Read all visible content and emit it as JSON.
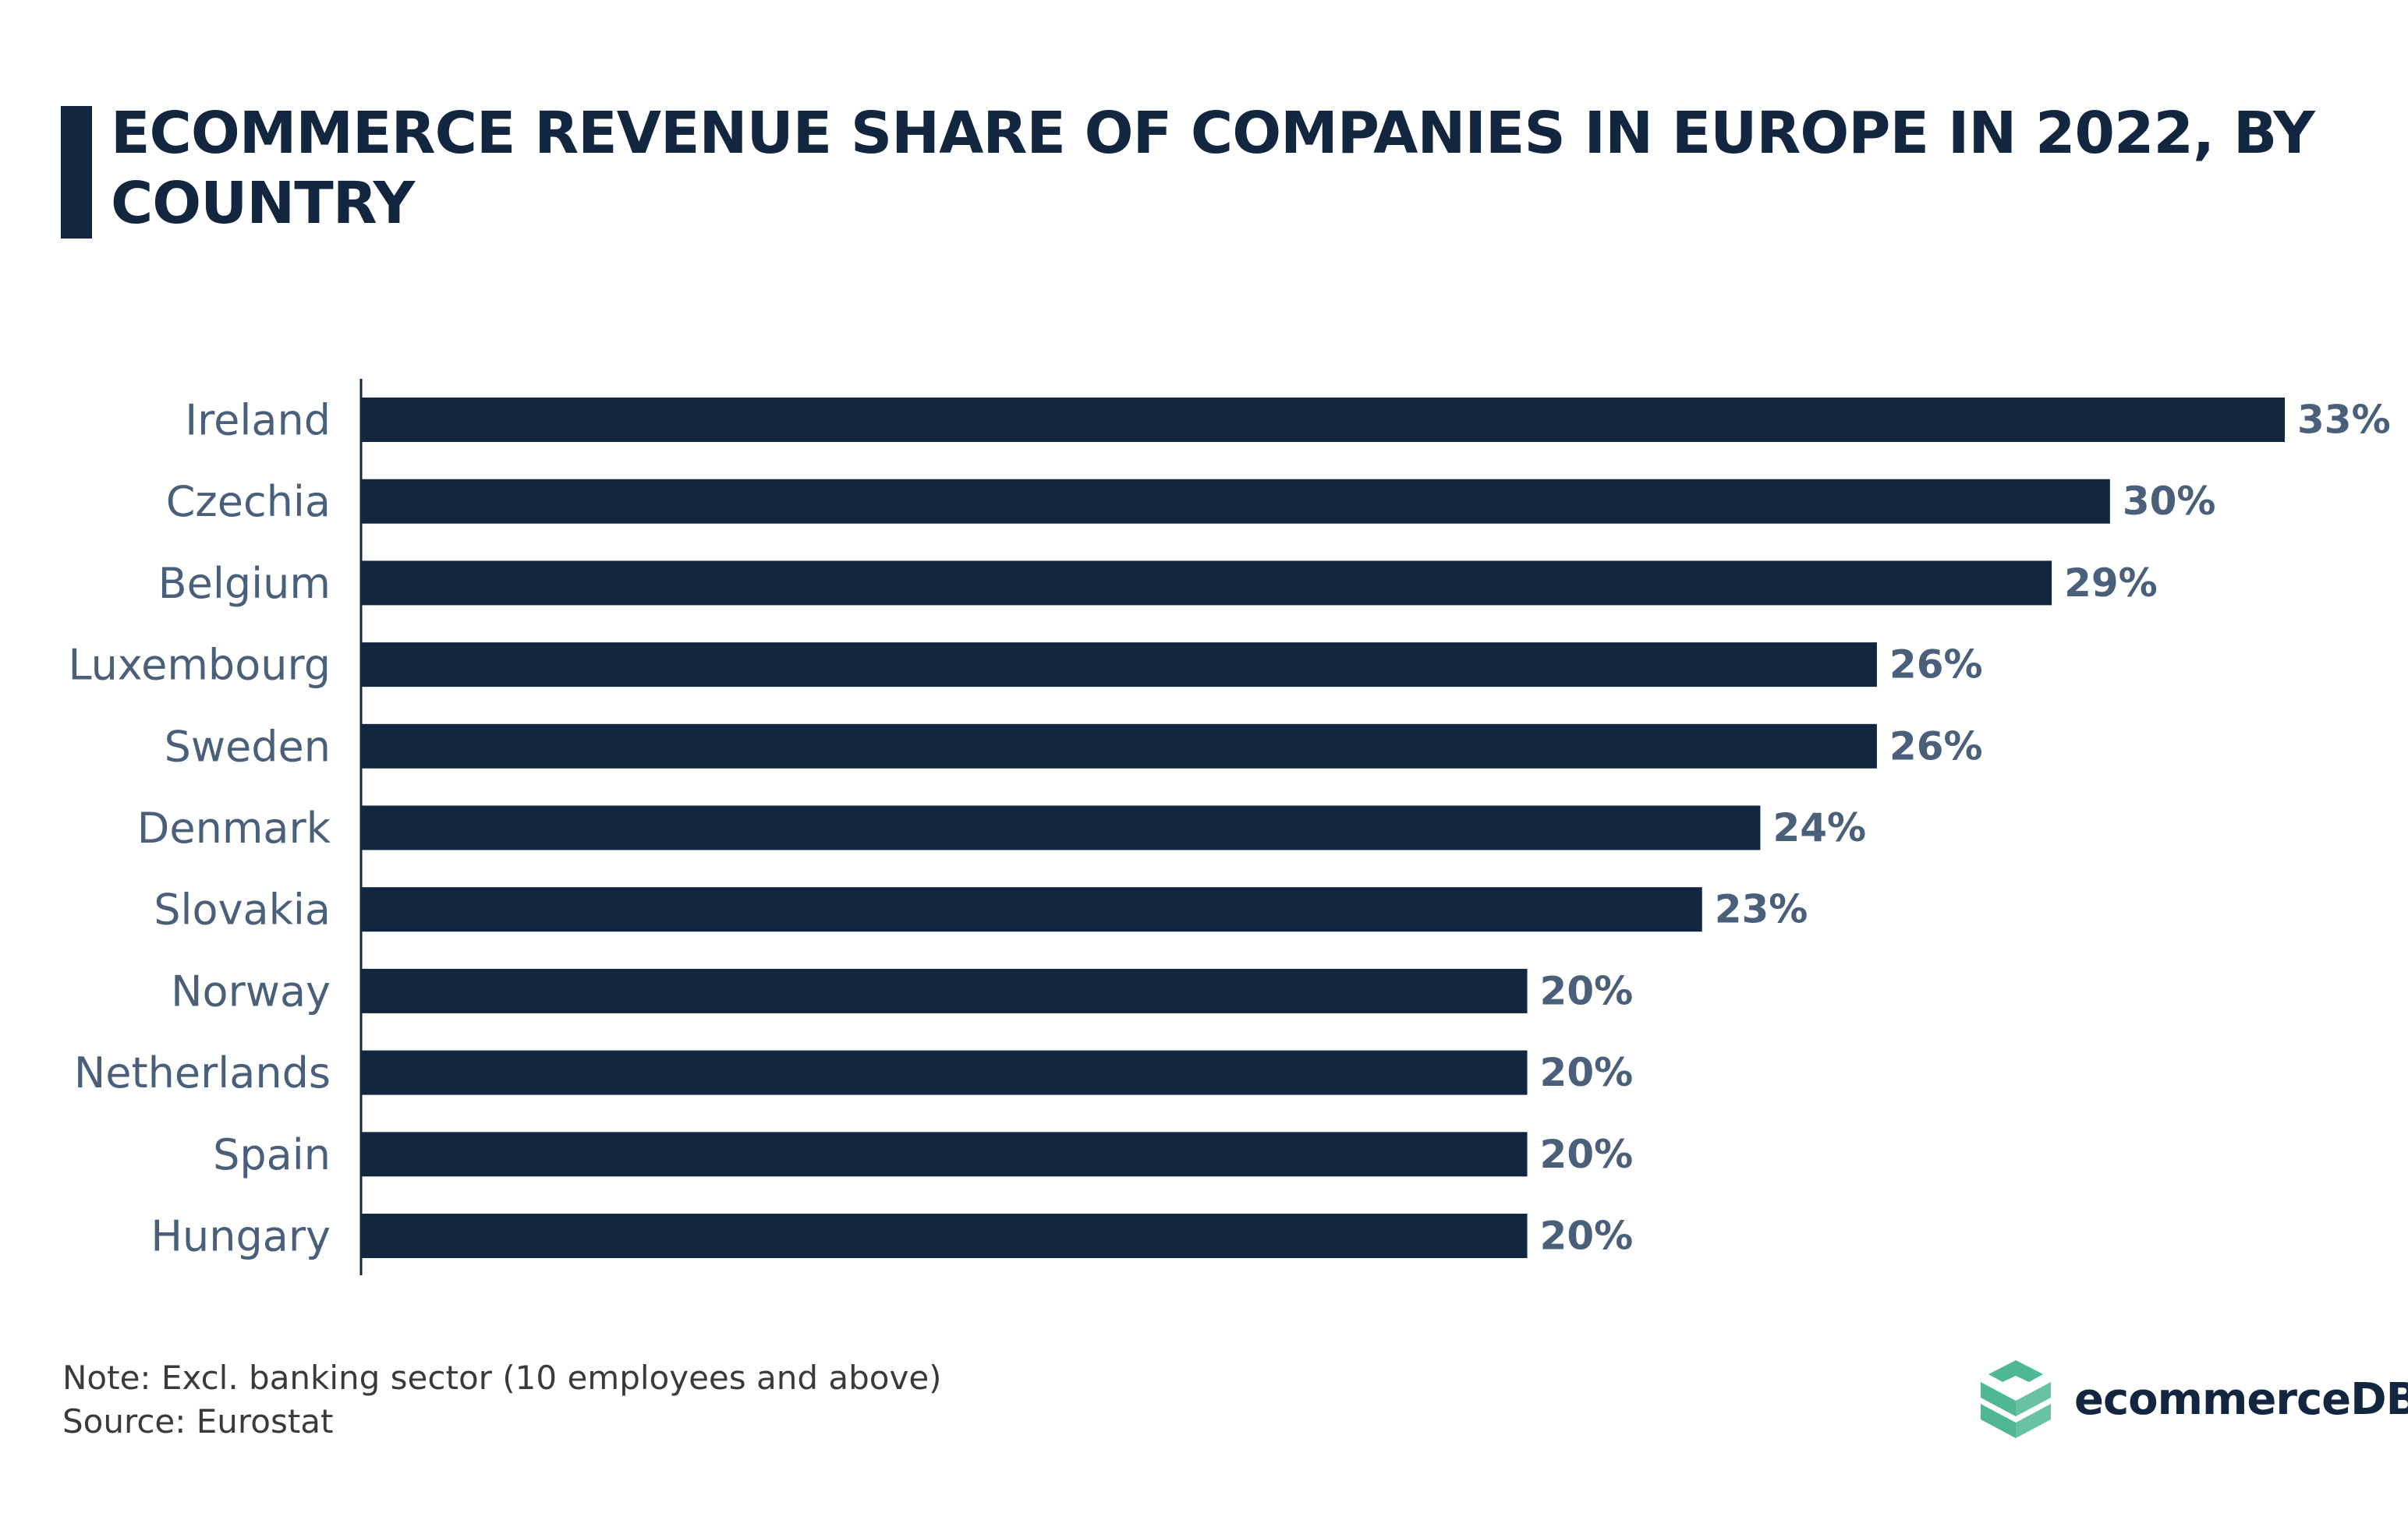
{
  "title": "ECOMMERCE REVENUE SHARE OF COMPANIES IN EUROPE IN 2022, BY COUNTRY",
  "chart_data": {
    "type": "bar",
    "orientation": "horizontal",
    "title": "ECOMMERCE REVENUE SHARE OF COMPANIES IN EUROPE IN 2022, BY COUNTRY",
    "categories": [
      "Ireland",
      "Czechia",
      "Belgium",
      "Luxembourg",
      "Sweden",
      "Denmark",
      "Slovakia",
      "Norway",
      "Netherlands",
      "Spain",
      "Hungary"
    ],
    "values": [
      33,
      30,
      29,
      26,
      26,
      24,
      23,
      20,
      20,
      20,
      20
    ],
    "value_labels": [
      "33%",
      "30%",
      "29%",
      "26%",
      "26%",
      "24%",
      "23%",
      "20%",
      "20%",
      "20%",
      "20%"
    ],
    "unit": "%",
    "xlim": [
      0,
      33
    ],
    "grid": false,
    "bar_color": "#13263f",
    "label_color": "#4a607a"
  },
  "footer": {
    "note": "Note: Excl. banking sector (10 employees and above)",
    "source": "Source: Eurostat"
  },
  "logo": {
    "text": "ecommerceDB",
    "color": "#4fb892"
  }
}
